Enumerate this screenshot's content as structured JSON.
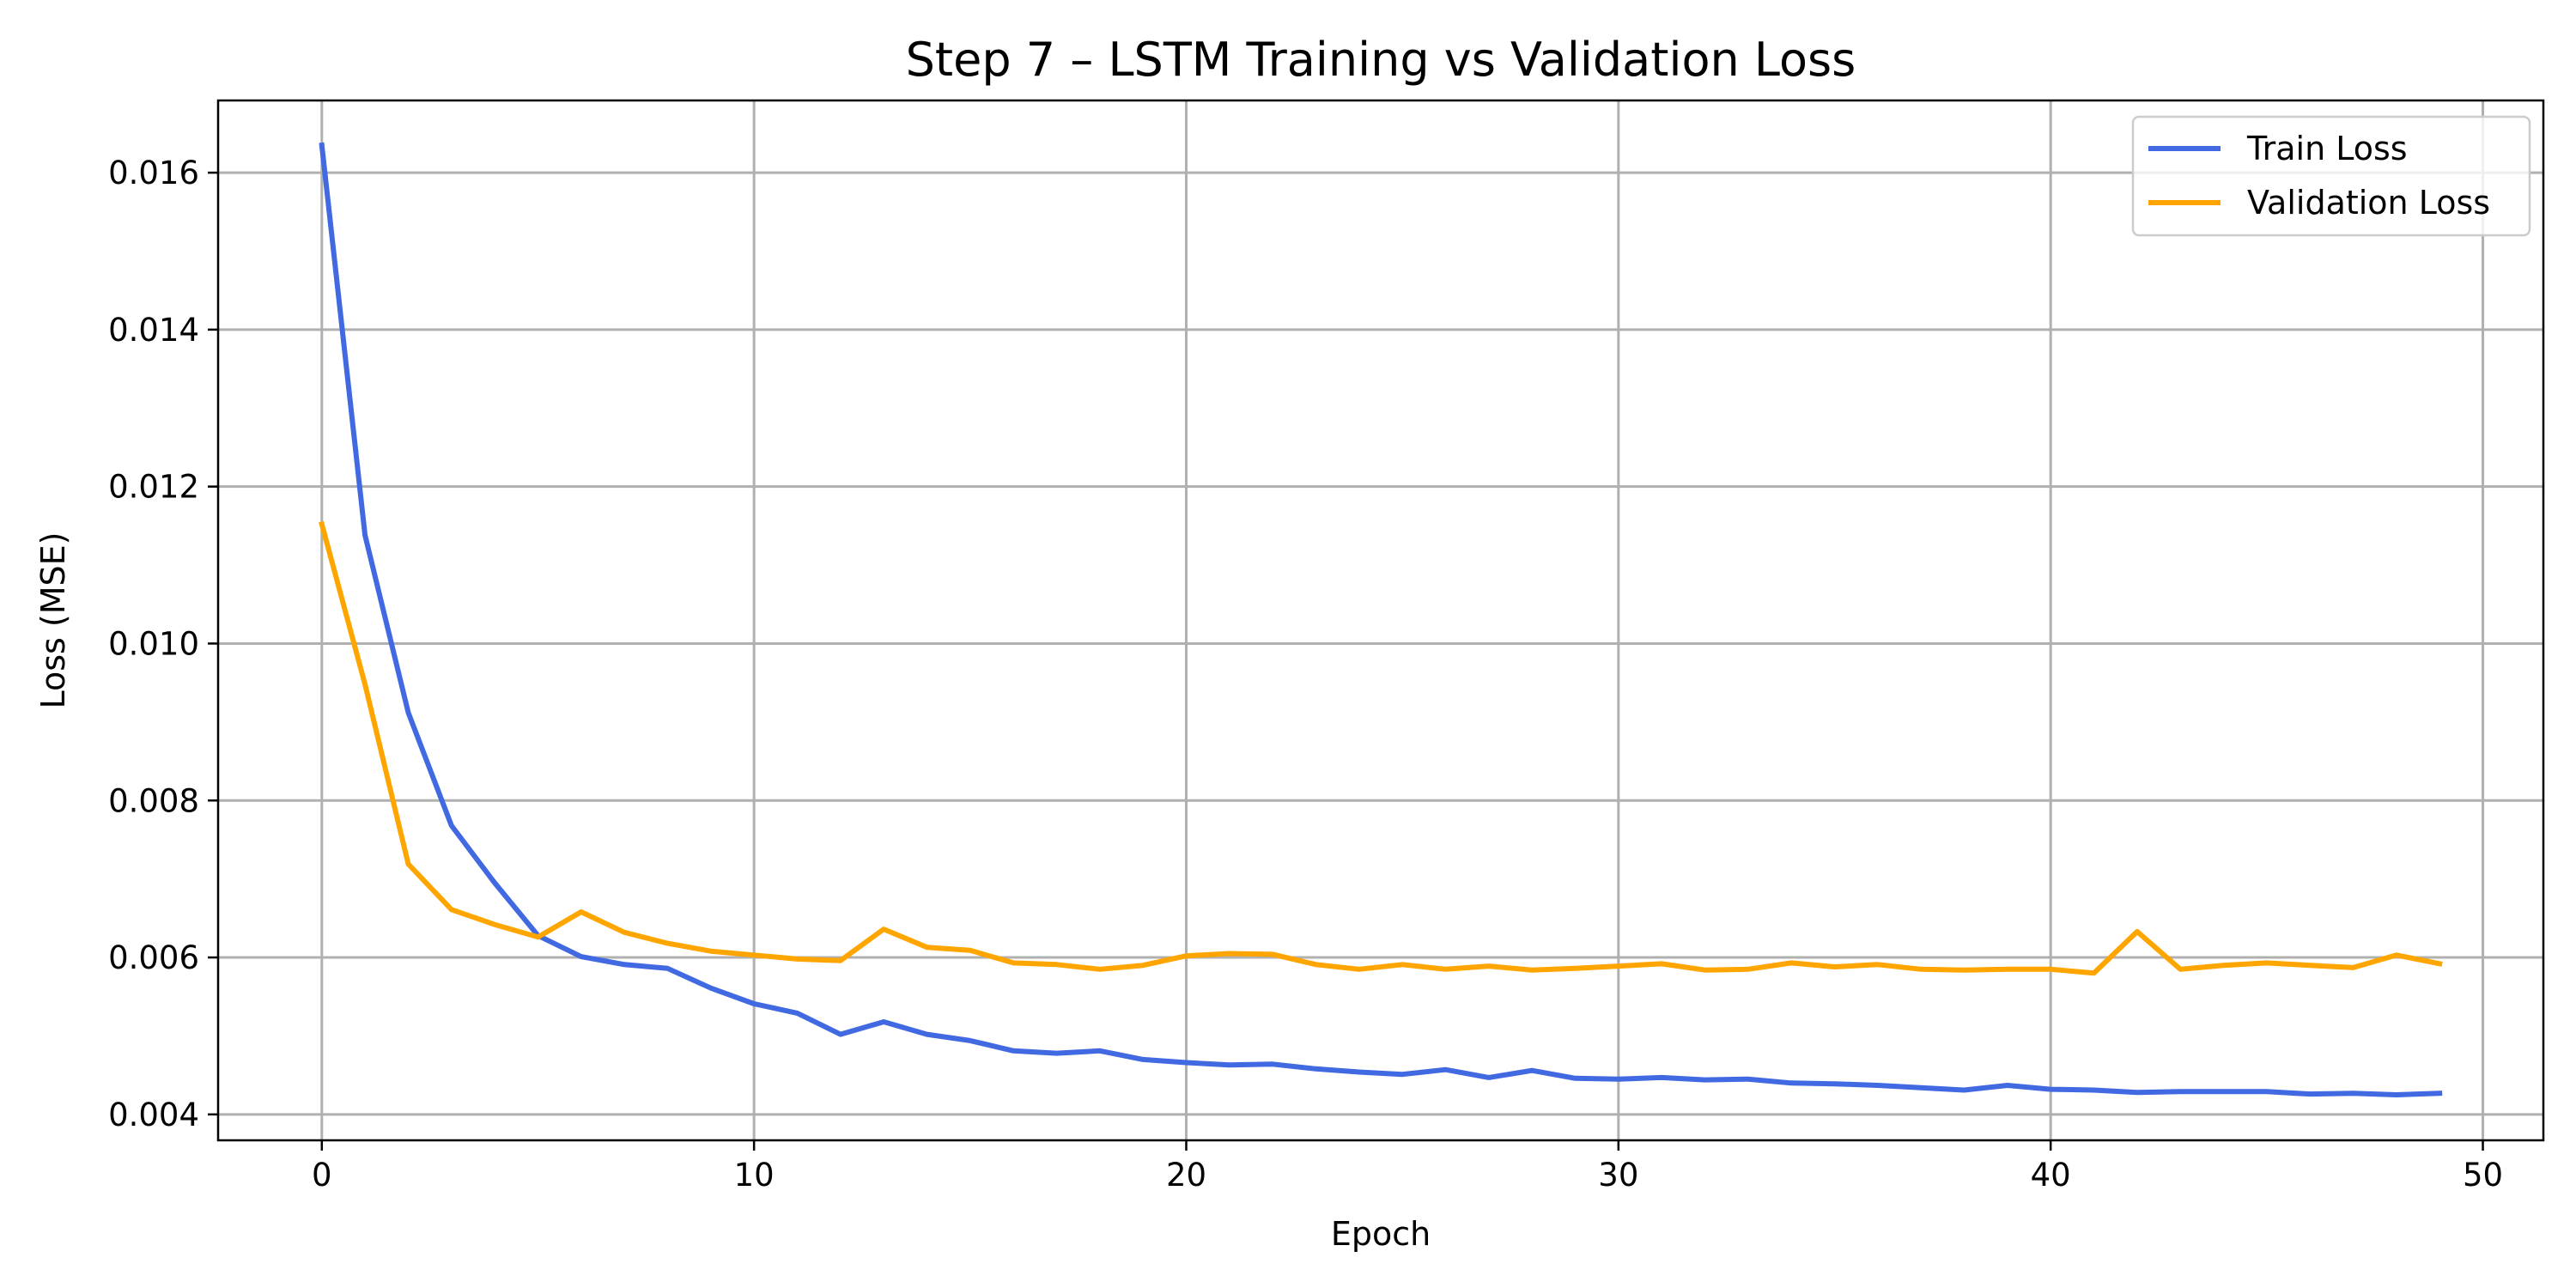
{
  "chart_data": {
    "type": "line",
    "title": "Step 7 – LSTM Training vs Validation Loss",
    "xlabel": "Epoch",
    "ylabel": "Loss (MSE)",
    "xlim": [
      -2.4,
      51.4
    ],
    "ylim": [
      0.00367,
      0.01692
    ],
    "xticks": [
      0,
      10,
      20,
      30,
      40,
      50
    ],
    "xtick_labels": [
      "0",
      "10",
      "20",
      "30",
      "40",
      "50"
    ],
    "yticks": [
      0.004,
      0.006,
      0.008,
      0.01,
      0.012,
      0.014,
      0.016
    ],
    "ytick_labels": [
      "0.004",
      "0.006",
      "0.008",
      "0.010",
      "0.012",
      "0.014",
      "0.016"
    ],
    "grid": true,
    "legend_position": "top-right",
    "x": [
      0,
      1,
      2,
      3,
      4,
      5,
      6,
      7,
      8,
      9,
      10,
      11,
      12,
      13,
      14,
      15,
      16,
      17,
      18,
      19,
      20,
      21,
      22,
      23,
      24,
      25,
      26,
      27,
      28,
      29,
      30,
      31,
      32,
      33,
      34,
      35,
      36,
      37,
      38,
      39,
      40,
      41,
      42,
      43,
      44,
      45,
      46,
      47,
      48,
      49
    ],
    "series": [
      {
        "name": "Train Loss",
        "color": "#4169e1",
        "values": [
          0.01635,
          0.01138,
          0.00912,
          0.00768,
          0.00695,
          0.00628,
          0.00601,
          0.00591,
          0.00586,
          0.00561,
          0.00541,
          0.00529,
          0.00502,
          0.00518,
          0.00502,
          0.00494,
          0.00481,
          0.00478,
          0.00481,
          0.0047,
          0.00466,
          0.00463,
          0.00464,
          0.00458,
          0.00454,
          0.00451,
          0.00457,
          0.00447,
          0.00456,
          0.00446,
          0.00445,
          0.00447,
          0.00444,
          0.00445,
          0.0044,
          0.00439,
          0.00437,
          0.00434,
          0.00431,
          0.00437,
          0.00432,
          0.00431,
          0.00428,
          0.00429,
          0.00429,
          0.00429,
          0.00426,
          0.00427,
          0.00425,
          0.00427
        ]
      },
      {
        "name": "Validation Loss",
        "color": "#ffa500",
        "values": [
          0.01152,
          0.00948,
          0.00719,
          0.00661,
          0.00642,
          0.00626,
          0.00658,
          0.00632,
          0.00618,
          0.00608,
          0.00603,
          0.00598,
          0.00596,
          0.00636,
          0.00613,
          0.00609,
          0.00593,
          0.00591,
          0.00585,
          0.0059,
          0.00602,
          0.00605,
          0.00604,
          0.00591,
          0.00585,
          0.00591,
          0.00585,
          0.00589,
          0.00584,
          0.00586,
          0.00589,
          0.00592,
          0.00584,
          0.00585,
          0.00593,
          0.00588,
          0.00591,
          0.00585,
          0.00584,
          0.00585,
          0.00585,
          0.0058,
          0.00633,
          0.00585,
          0.0059,
          0.00593,
          0.0059,
          0.00587,
          0.00603,
          0.00592
        ]
      }
    ]
  }
}
